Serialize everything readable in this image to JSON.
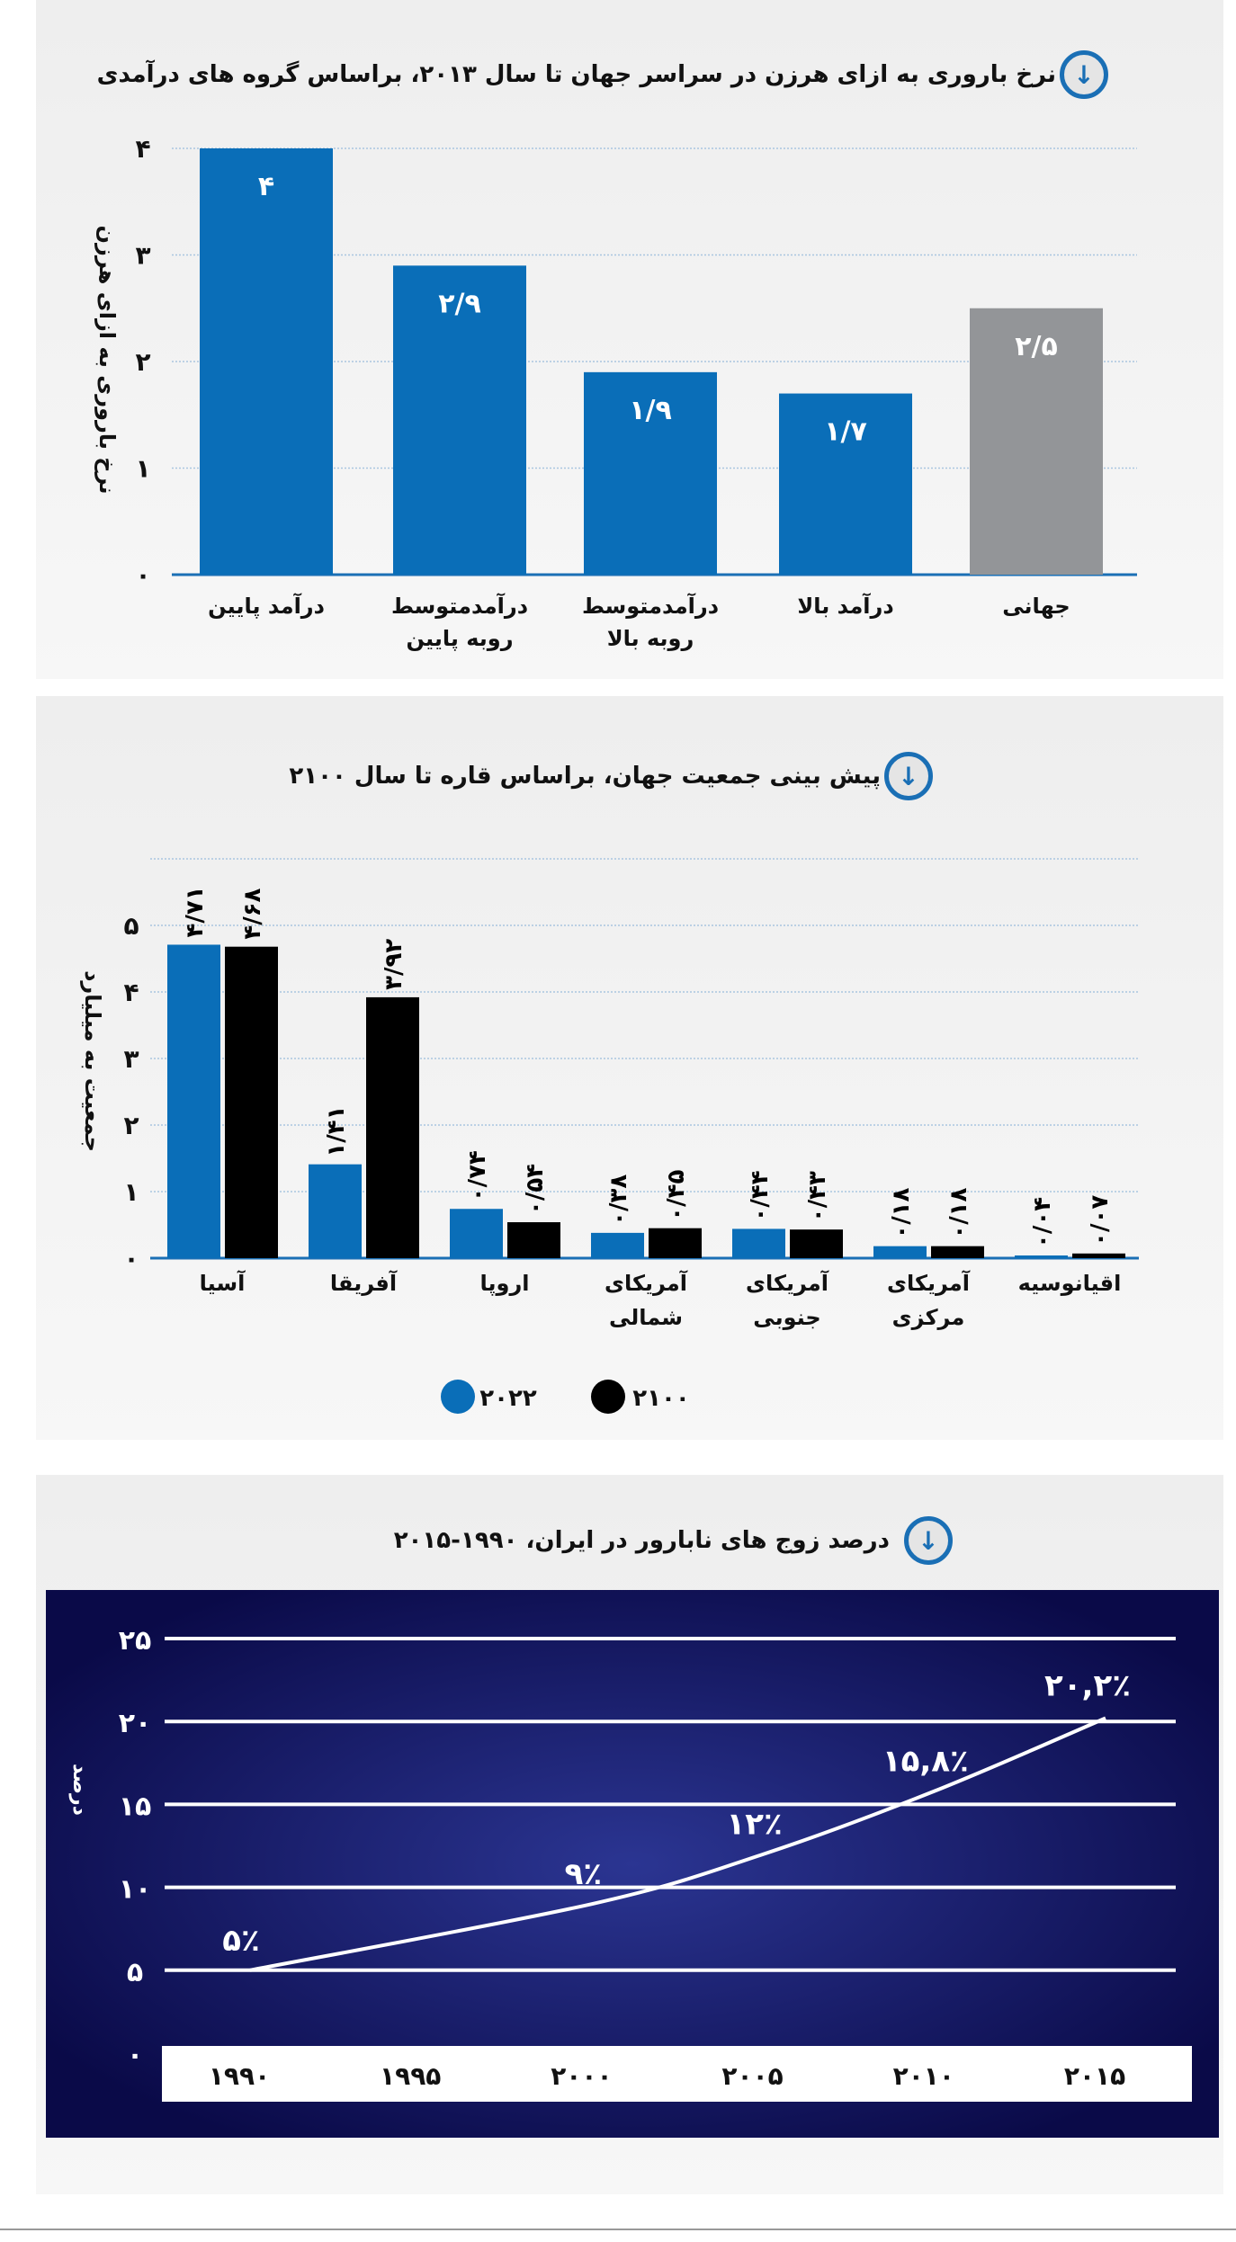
{
  "colors": {
    "blue": "#0a6eb8",
    "gray": "#939598",
    "black": "#000000",
    "navy": "#0b0b4f",
    "grid": "#a9c6e0"
  },
  "chart_data": [
    {
      "type": "bar",
      "title": "نرخ باروری به ازای هرزن در سراسر جهان تا سال ۲۰۱۳، براساس گروه های درآمدی",
      "ylabel": "نرخ باروری به ازای هرزن",
      "ylim": [
        0,
        4
      ],
      "yticks": [
        "۰",
        "۱",
        "۲",
        "۳",
        "۴"
      ],
      "grid": true,
      "categories": [
        [
          "درآمد پایین"
        ],
        [
          "درآمدمتوسط",
          "روبه پایین"
        ],
        [
          "درآمدمتوسط",
          "روبه بالا"
        ],
        [
          "درآمد بالا"
        ],
        [
          "جهانی"
        ]
      ],
      "values": [
        4,
        2.9,
        1.9,
        1.7,
        2.5
      ],
      "labels": [
        "۴",
        "۲/۹",
        "۱/۹",
        "۱/۷",
        "۲/۵"
      ],
      "bar_colors": [
        "#0a6eb8",
        "#0a6eb8",
        "#0a6eb8",
        "#0a6eb8",
        "#939598"
      ]
    },
    {
      "type": "bar",
      "title": "پیش بینی جمعیت جهان، براساس قاره تا سال ۲۱۰۰",
      "ylabel": "جمعیت به میلیارد",
      "ylim": [
        0,
        6
      ],
      "yticks": [
        "۰",
        "۱",
        "۲",
        "۳",
        "۴",
        "۵"
      ],
      "grid": true,
      "legend": "bottom",
      "categories": [
        [
          "آسیا"
        ],
        [
          "آفریقا"
        ],
        [
          "اروپا"
        ],
        [
          "آمریکای",
          "شمالی"
        ],
        [
          "آمریکای",
          "جنوبی"
        ],
        [
          "آمریکای",
          "مرکزی"
        ],
        [
          "اقیانوسیه"
        ]
      ],
      "series": [
        {
          "name": "۲۰۲۲",
          "color": "#0a6eb8",
          "values": [
            4.71,
            1.41,
            0.74,
            0.38,
            0.44,
            0.18,
            0.04
          ],
          "labels": [
            "۴/۷۱",
            "۱/۴۱",
            "۰/۷۴",
            "۰/۳۸",
            "۰/۴۴",
            "۰/۱۸",
            "۰/۰۴"
          ]
        },
        {
          "name": "۲۱۰۰",
          "color": "#000000",
          "values": [
            4.68,
            3.92,
            0.54,
            0.45,
            0.43,
            0.18,
            0.07
          ],
          "labels": [
            "۴/۶۸",
            "۳/۹۲",
            "۰/۵۴",
            "۰/۴۵",
            "۰/۴۳",
            "۰/۱۸",
            "۰/۰۷"
          ]
        }
      ]
    },
    {
      "type": "line",
      "title": "درصد زوج های نابارور در ایران، ۱۹۹۰-۲۰۱۵",
      "ylabel": "درصد",
      "ylim": [
        0,
        25
      ],
      "yticks": [
        "۰",
        "۵",
        "۱۰",
        "۱۵",
        "۲۰",
        "۲۵"
      ],
      "xticks": [
        "۱۹۹۰",
        "۱۹۹۵",
        "۲۰۰۰",
        "۲۰۰۵",
        "۲۰۱۰",
        "۲۰۱۵"
      ],
      "xlim": [
        1990,
        2015
      ],
      "grid": true,
      "x": [
        1990,
        2000,
        2005,
        2010,
        2015
      ],
      "y": [
        5,
        9,
        12,
        15.8,
        20.2
      ],
      "labels": [
        "۵٪",
        "۹٪",
        "۱۲٪",
        "۱۵,۸٪",
        "۲۰,۲٪"
      ]
    }
  ]
}
